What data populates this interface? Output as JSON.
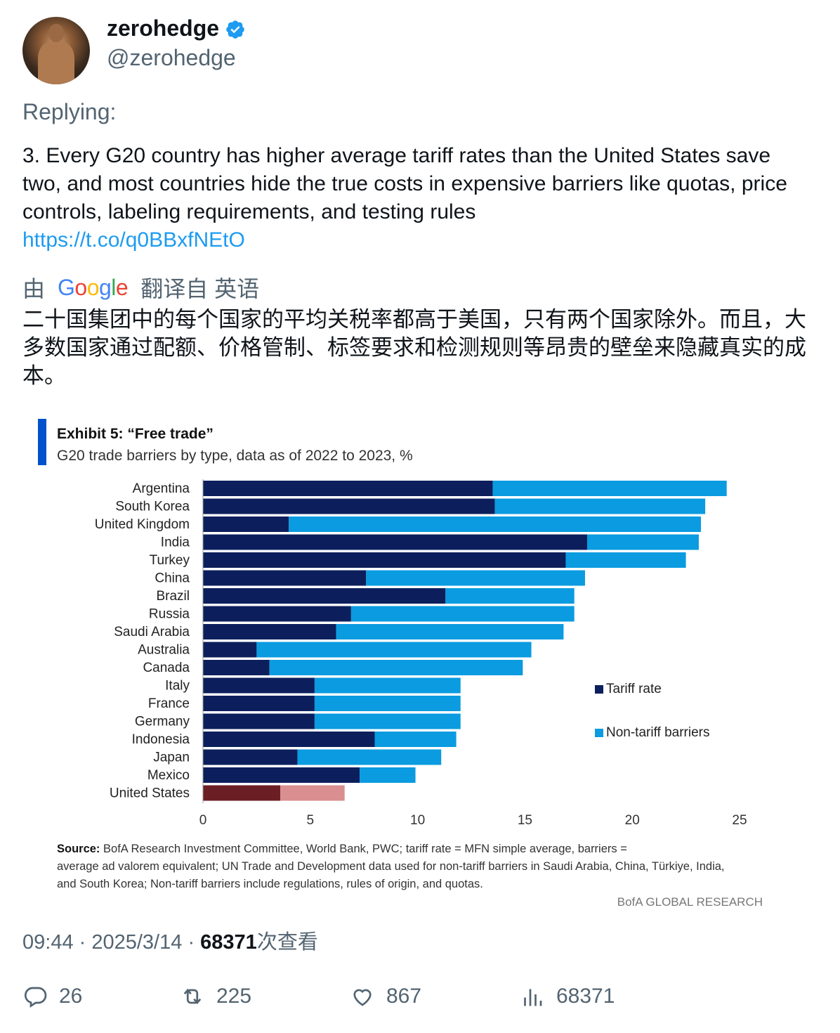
{
  "user": {
    "display_name": "zerohedge",
    "handle": "@zerohedge"
  },
  "replying": "Replying:",
  "tweet": {
    "text": "3. Every G20 country has higher average tariff rates than the United States save two, and most countries hide the true costs in expensive barriers like quotas, price controls, labeling requirements, and testing rules",
    "link": "https://t.co/q0BBxfNEtO"
  },
  "translation": {
    "prefix": "由",
    "provider": "Google",
    "suffix": "翻译自 英语",
    "text": "二十国集团中的每个国家的平均关税率都高于美国，只有两个国家除外。而且，大多数国家通过配额、价格管制、标签要求和检测规则等昂贵的壁垒来隐藏真实的成本。"
  },
  "colors": {
    "tariff": "#0c1f5c",
    "non_tariff": "#0a9be0",
    "us_tariff": "#6b1f25",
    "us_non_tariff": "#d98f8f",
    "accent_bar": "#0052cc",
    "link": "#1d9bf0"
  },
  "chart_data": {
    "type": "bar",
    "orientation": "horizontal",
    "stacked": true,
    "title": "Exhibit 5: “Free trade”",
    "subtitle": "G20 trade barriers by type, data as of 2022 to 2023, %",
    "categories": [
      "Argentina",
      "South Korea",
      "United Kingdom",
      "India",
      "Turkey",
      "China",
      "Brazil",
      "Russia",
      "Saudi Arabia",
      "Australia",
      "Canada",
      "Italy",
      "France",
      "Germany",
      "Indonesia",
      "Japan",
      "Mexico",
      "United States"
    ],
    "series": [
      {
        "name": "Tariff rate",
        "values": [
          13.5,
          13.6,
          4.0,
          17.9,
          16.9,
          7.6,
          11.3,
          6.9,
          6.2,
          2.5,
          3.1,
          5.2,
          5.2,
          5.2,
          8.0,
          4.4,
          7.3,
          3.6
        ]
      },
      {
        "name": "Non-tariff barriers",
        "values": [
          10.9,
          9.8,
          19.2,
          5.2,
          5.6,
          10.2,
          6.0,
          10.4,
          10.6,
          12.8,
          11.8,
          6.8,
          6.8,
          6.8,
          3.8,
          6.7,
          2.6,
          3.0
        ]
      }
    ],
    "xlim": [
      0,
      25
    ],
    "xticks": [
      "0",
      "5",
      "10",
      "15",
      "20",
      "25"
    ],
    "legend_position": "right",
    "source_label": "Source:",
    "source_text": "BofA Research Investment Committee, World Bank, PWC; tariff rate = MFN simple average, barriers = average ad valorem equivalent; UN Trade and Development data used for non-tariff barriers in Saudi Arabia, China, Türkiye, India, and South Korea; Non-tariff barriers include regulations, rules of origin, and quotas.",
    "branding": "BofA GLOBAL RESEARCH"
  },
  "meta": {
    "time": "09:44",
    "date": "2025/3/14",
    "views": "68371",
    "views_label": "次查看"
  },
  "actions": {
    "replies": "26",
    "retweets": "225",
    "likes": "867",
    "views": "68371"
  },
  "icons": [
    "verified-badge-icon",
    "reply-icon",
    "retweet-icon",
    "like-icon",
    "views-icon"
  ]
}
